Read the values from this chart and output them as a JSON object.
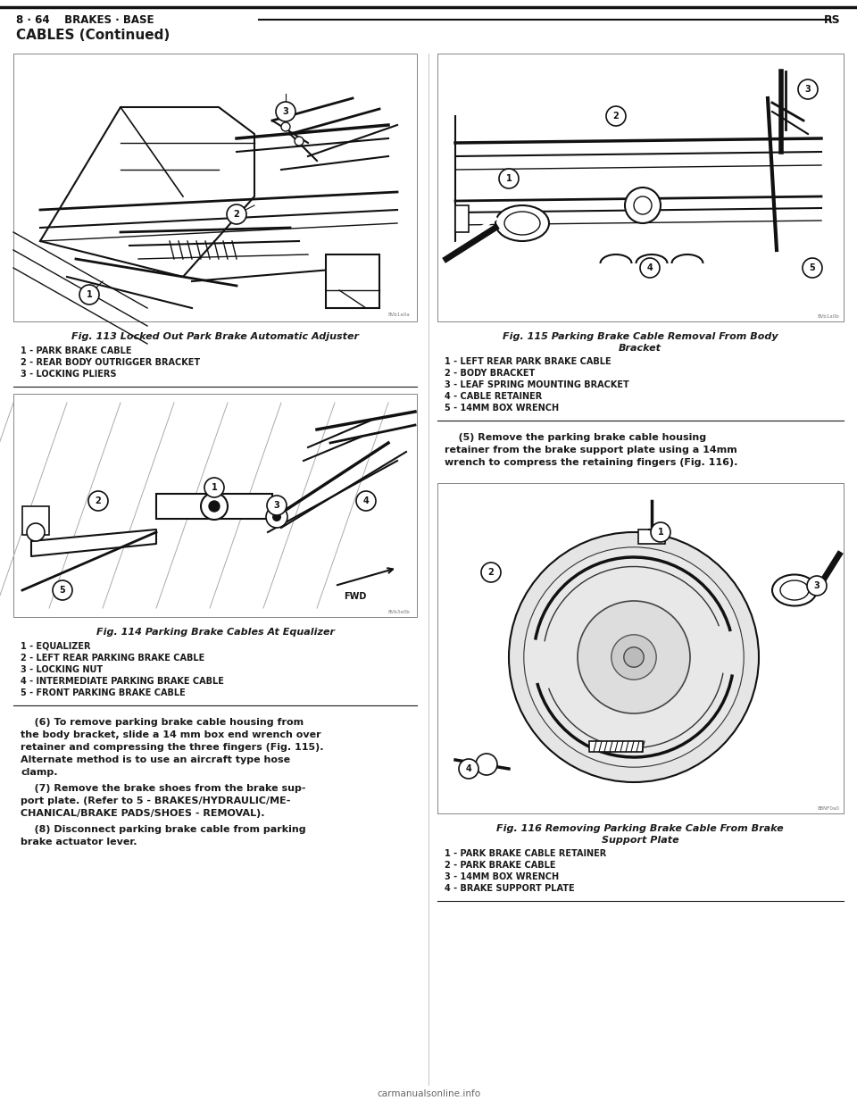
{
  "bg_color": "#ffffff",
  "page_width": 9.6,
  "page_height": 12.42,
  "header_left": "8 · 64    BRAKES · BASE",
  "header_right": "RS",
  "section_title": "CABLES (Continued)",
  "fig113_caption": "Fig. 113 Locked Out Park Brake Automatic Adjuster",
  "fig113_items": [
    "1 - PARK BRAKE CABLE",
    "2 - REAR BODY OUTRIGGER BRACKET",
    "3 - LOCKING PLIERS"
  ],
  "fig114_caption": "Fig. 114 Parking Brake Cables At Equalizer",
  "fig114_items": [
    "1 - EQUALIZER",
    "2 - LEFT REAR PARKING BRAKE CABLE",
    "3 - LOCKING NUT",
    "4 - INTERMEDIATE PARKING BRAKE CABLE",
    "5 - FRONT PARKING BRAKE CABLE"
  ],
  "fig115_caption_line1": "Fig. 115 Parking Brake Cable Removal From Body",
  "fig115_caption_line2": "Bracket",
  "fig115_items": [
    "1 - LEFT REAR PARK BRAKE CABLE",
    "2 - BODY BRACKET",
    "3 - LEAF SPRING MOUNTING BRACKET",
    "4 - CABLE RETAINER",
    "5 - 14MM BOX WRENCH"
  ],
  "fig116_caption_line1": "Fig. 116 Removing Parking Brake Cable From Brake",
  "fig116_caption_line2": "Support Plate",
  "fig116_items": [
    "1 - PARK BRAKE CABLE RETAINER",
    "2 - PARK BRAKE CABLE",
    "3 - 14MM BOX WRENCH",
    "4 - BRAKE SUPPORT PLATE"
  ],
  "para6_lines": [
    "    (6) To remove parking brake cable housing from",
    "the body bracket, slide a 14 mm box end wrench over",
    "retainer and compressing the three fingers (Fig. 115).",
    "Alternate method is to use an aircraft type hose",
    "clamp."
  ],
  "para7_lines": [
    "    (7) Remove the brake shoes from the brake sup-",
    "port plate. (Refer to 5 - BRAKES/HYDRAULIC/ME-",
    "CHANICAL/BRAKE PADS/SHOES - REMOVAL)."
  ],
  "para8_lines": [
    "    (8) Disconnect parking brake cable from parking",
    "brake actuator lever."
  ],
  "para5r_lines": [
    "    (5) Remove the parking brake cable housing",
    "retainer from the brake support plate using a 14mm",
    "wrench to compress the retaining fingers (Fig. 116)."
  ],
  "text_color": "#1a1a1a",
  "line_color": "#1a1a1a"
}
